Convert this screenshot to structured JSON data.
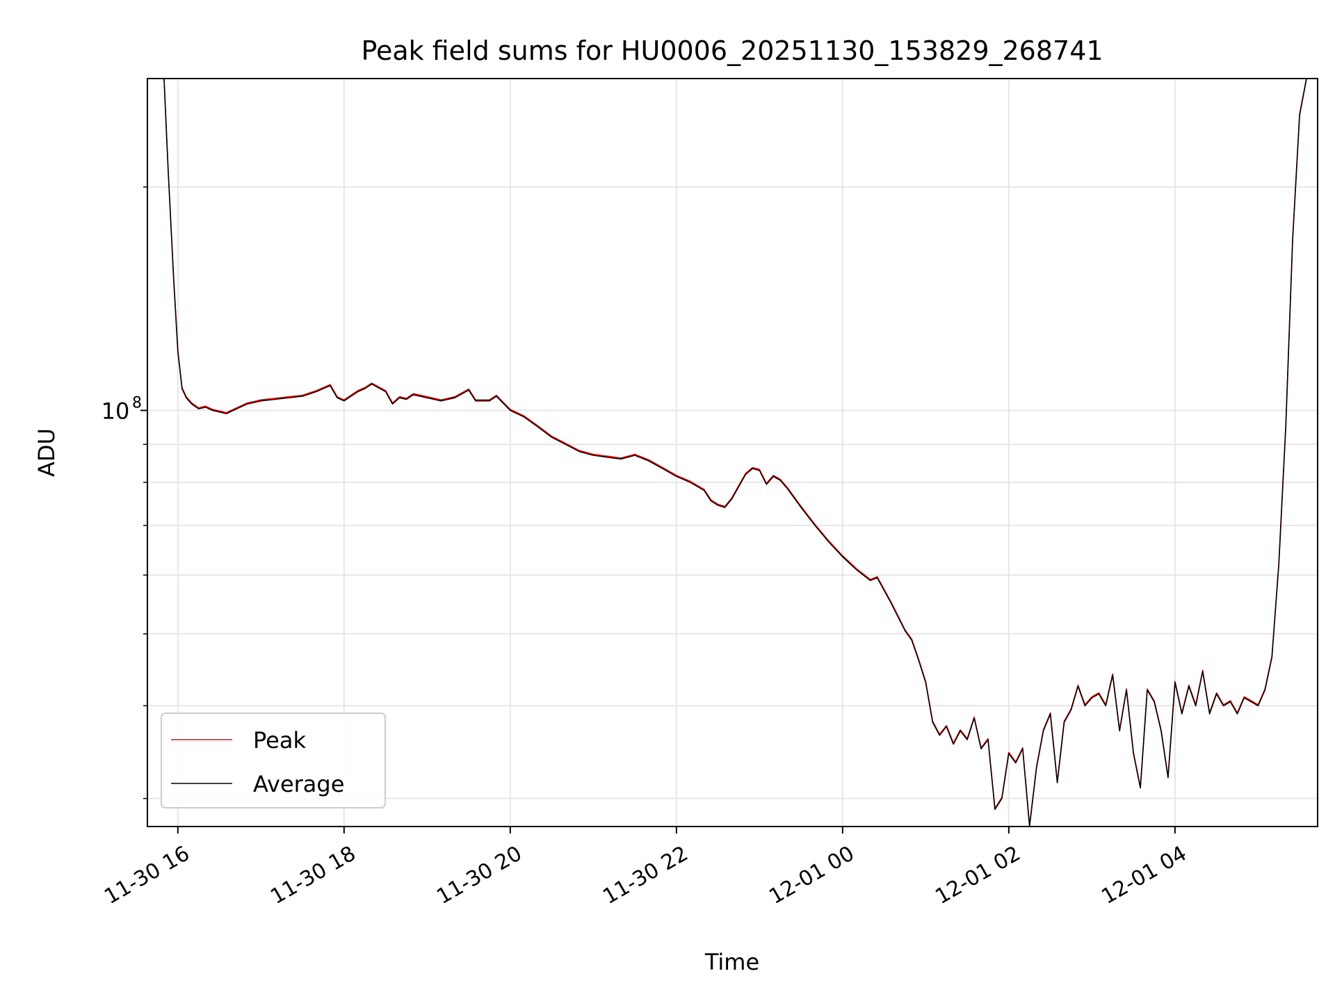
{
  "chart_data": {
    "type": "line",
    "title": "Peak field sums for HU0006_20251130_153829_268741",
    "xlabel": "Time",
    "ylabel": "ADU",
    "yscale": "log",
    "grid": true,
    "legend_position": "lower-left",
    "xlim": [
      "2025-11-30 15:38",
      "2025-12-01 05:43"
    ],
    "ylim": [
      27500000,
      280000000
    ],
    "x_ticks": [
      {
        "t": "2025-11-30 16:00",
        "label": "11-30 16"
      },
      {
        "t": "2025-11-30 18:00",
        "label": "11-30 18"
      },
      {
        "t": "2025-11-30 20:00",
        "label": "11-30 20"
      },
      {
        "t": "2025-11-30 22:00",
        "label": "11-30 22"
      },
      {
        "t": "2025-12-01 00:00",
        "label": "12-01 00"
      },
      {
        "t": "2025-12-01 02:00",
        "label": "12-01 02"
      },
      {
        "t": "2025-12-01 04:00",
        "label": "12-01 04"
      }
    ],
    "y_major_ticks": [
      {
        "value": 100000000,
        "base": "10",
        "exponent": "8"
      }
    ],
    "y_minor_ticks": [
      30000000,
      40000000,
      50000000,
      60000000,
      70000000,
      80000000,
      90000000,
      200000000
    ],
    "series": [
      {
        "name": "Peak",
        "color": "#ff0000"
      },
      {
        "name": "Average",
        "color": "#000000"
      }
    ],
    "x": [
      "2025-11-30 15:50",
      "2025-11-30 15:53",
      "2025-11-30 15:57",
      "2025-11-30 16:00",
      "2025-11-30 16:03",
      "2025-11-30 16:06",
      "2025-11-30 16:10",
      "2025-11-30 16:15",
      "2025-11-30 16:20",
      "2025-11-30 16:25",
      "2025-11-30 16:30",
      "2025-11-30 16:35",
      "2025-11-30 16:40",
      "2025-11-30 16:45",
      "2025-11-30 16:50",
      "2025-11-30 16:55",
      "2025-11-30 17:00",
      "2025-11-30 17:10",
      "2025-11-30 17:20",
      "2025-11-30 17:30",
      "2025-11-30 17:40",
      "2025-11-30 17:50",
      "2025-11-30 17:55",
      "2025-11-30 18:00",
      "2025-11-30 18:10",
      "2025-11-30 18:15",
      "2025-11-30 18:20",
      "2025-11-30 18:30",
      "2025-11-30 18:35",
      "2025-11-30 18:40",
      "2025-11-30 18:45",
      "2025-11-30 18:50",
      "2025-11-30 19:00",
      "2025-11-30 19:10",
      "2025-11-30 19:20",
      "2025-11-30 19:30",
      "2025-11-30 19:35",
      "2025-11-30 19:45",
      "2025-11-30 19:50",
      "2025-11-30 20:00",
      "2025-11-30 20:10",
      "2025-11-30 20:20",
      "2025-11-30 20:30",
      "2025-11-30 20:40",
      "2025-11-30 20:50",
      "2025-11-30 21:00",
      "2025-11-30 21:10",
      "2025-11-30 21:20",
      "2025-11-30 21:30",
      "2025-11-30 21:40",
      "2025-11-30 21:50",
      "2025-11-30 22:00",
      "2025-11-30 22:10",
      "2025-11-30 22:20",
      "2025-11-30 22:25",
      "2025-11-30 22:30",
      "2025-11-30 22:35",
      "2025-11-30 22:40",
      "2025-11-30 22:50",
      "2025-11-30 22:55",
      "2025-11-30 23:00",
      "2025-11-30 23:05",
      "2025-11-30 23:10",
      "2025-11-30 23:15",
      "2025-11-30 23:20",
      "2025-11-30 23:30",
      "2025-11-30 23:40",
      "2025-11-30 23:50",
      "2025-12-01 00:00",
      "2025-12-01 00:10",
      "2025-12-01 00:20",
      "2025-12-01 00:25",
      "2025-12-01 00:35",
      "2025-12-01 00:45",
      "2025-12-01 00:50",
      "2025-12-01 00:55",
      "2025-12-01 01:00",
      "2025-12-01 01:05",
      "2025-12-01 01:10",
      "2025-12-01 01:15",
      "2025-12-01 01:20",
      "2025-12-01 01:25",
      "2025-12-01 01:30",
      "2025-12-01 01:35",
      "2025-12-01 01:40",
      "2025-12-01 01:45",
      "2025-12-01 01:50",
      "2025-12-01 01:55",
      "2025-12-01 02:00",
      "2025-12-01 02:05",
      "2025-12-01 02:10",
      "2025-12-01 02:15",
      "2025-12-01 02:20",
      "2025-12-01 02:25",
      "2025-12-01 02:30",
      "2025-12-01 02:35",
      "2025-12-01 02:40",
      "2025-12-01 02:45",
      "2025-12-01 02:50",
      "2025-12-01 02:55",
      "2025-12-01 03:00",
      "2025-12-01 03:05",
      "2025-12-01 03:10",
      "2025-12-01 03:15",
      "2025-12-01 03:20",
      "2025-12-01 03:25",
      "2025-12-01 03:30",
      "2025-12-01 03:35",
      "2025-12-01 03:40",
      "2025-12-01 03:45",
      "2025-12-01 03:50",
      "2025-12-01 03:55",
      "2025-12-01 04:00",
      "2025-12-01 04:05",
      "2025-12-01 04:10",
      "2025-12-01 04:15",
      "2025-12-01 04:20",
      "2025-12-01 04:25",
      "2025-12-01 04:30",
      "2025-12-01 04:35",
      "2025-12-01 04:40",
      "2025-12-01 04:45",
      "2025-12-01 04:50",
      "2025-12-01 04:55",
      "2025-12-01 05:00",
      "2025-12-01 05:05",
      "2025-12-01 05:10",
      "2025-12-01 05:15",
      "2025-12-01 05:20",
      "2025-12-01 05:25",
      "2025-12-01 05:30",
      "2025-12-01 05:35"
    ],
    "values": [
      280000000,
      210000000,
      150000000,
      120000000,
      107000000,
      104000000,
      102000000,
      100500000,
      101000000,
      100000000,
      99500000,
      99000000,
      100000000,
      101000000,
      102000000,
      102500000,
      103000000,
      103500000,
      104000000,
      104500000,
      106000000,
      108000000,
      104000000,
      103000000,
      106000000,
      107000000,
      108500000,
      106000000,
      102000000,
      104000000,
      103500000,
      105000000,
      104000000,
      103000000,
      104000000,
      106500000,
      103000000,
      103000000,
      104500000,
      100000000,
      98000000,
      95000000,
      92000000,
      90000000,
      88000000,
      87000000,
      86500000,
      86000000,
      87000000,
      85500000,
      83500000,
      81500000,
      80000000,
      78000000,
      75500000,
      74500000,
      74000000,
      76000000,
      82000000,
      83500000,
      83000000,
      79500000,
      81500000,
      80500000,
      78500000,
      74000000,
      70000000,
      66500000,
      63500000,
      61000000,
      59000000,
      59500000,
      55000000,
      50500000,
      49000000,
      46000000,
      43000000,
      38000000,
      36500000,
      37500000,
      35500000,
      37000000,
      36000000,
      38500000,
      35000000,
      36000000,
      29000000,
      30000000,
      34500000,
      33500000,
      35000000,
      27500000,
      33000000,
      37000000,
      39000000,
      31500000,
      38000000,
      39500000,
      42500000,
      40000000,
      41000000,
      41500000,
      40000000,
      44000000,
      37000000,
      42000000,
      34500000,
      31000000,
      42000000,
      40500000,
      37000000,
      32000000,
      43000000,
      39000000,
      42500000,
      40000000,
      44500000,
      39000000,
      41500000,
      40000000,
      40500000,
      39000000,
      41000000,
      40500000,
      40000000,
      42000000,
      46500000,
      62000000,
      95000000,
      170000000,
      250000000,
      280000000
    ]
  }
}
